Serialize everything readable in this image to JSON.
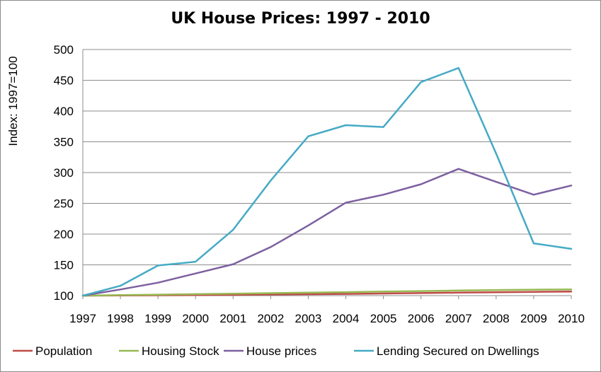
{
  "chart_data": {
    "type": "line",
    "title": "UK House Prices: 1997 - 2010",
    "ylabel": "Index: 1997=100",
    "xlabel": "",
    "ylim": [
      100,
      500
    ],
    "yticks": [
      100,
      150,
      200,
      250,
      300,
      350,
      400,
      450,
      500
    ],
    "x": [
      1997,
      1998,
      1999,
      2000,
      2001,
      2002,
      2003,
      2004,
      2005,
      2006,
      2007,
      2008,
      2009,
      2010
    ],
    "grid": true,
    "legend": "bottom",
    "series": [
      {
        "name": "Population",
        "color": "#be4b48",
        "values": [
          100,
          100.3,
          100.6,
          100.9,
          101.3,
          101.8,
          102.3,
          102.8,
          103.4,
          104.1,
          104.8,
          105.5,
          106.1,
          106.7
        ]
      },
      {
        "name": "Housing Stock",
        "color": "#98b954",
        "values": [
          100,
          100.8,
          101.6,
          102.4,
          103.2,
          104,
          104.8,
          105.6,
          106.5,
          107.4,
          108.3,
          109.1,
          109.6,
          110.1
        ]
      },
      {
        "name": "House prices",
        "color": "#7d60a0",
        "values": [
          100,
          110,
          121,
          136,
          151,
          179,
          214,
          251,
          264,
          281,
          306,
          285,
          264,
          279
        ]
      },
      {
        "name": "Lending Secured on Dwellings",
        "color": "#46aac5",
        "values": [
          100,
          116,
          149,
          155,
          207,
          287,
          359,
          377,
          374,
          447,
          470,
          331,
          185,
          176
        ]
      }
    ]
  }
}
